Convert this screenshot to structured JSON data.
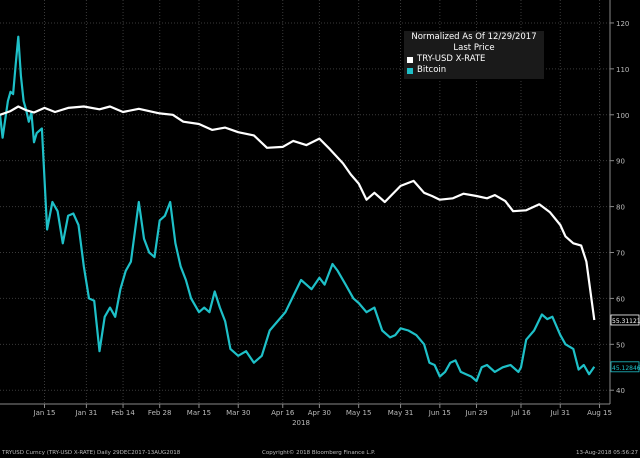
{
  "legend": {
    "title": "Normalized As Of 12/29/2017",
    "subtitle": "Last Price"
  },
  "footer": {
    "left": "TRYUSD Curncy  (TRY-USD X-RATE)  Daily  29DEC2017-13AUG2018",
    "center": "Copyright© 2018 Bloomberg Finance L.P.",
    "right": "13-Aug-2018  05:56:27"
  },
  "chart_data": {
    "type": "line",
    "title": "",
    "xlabel": "2018",
    "ylabel": "",
    "x_ticks": [
      "Jan 15",
      "Jan 31",
      "Feb 14",
      "Feb 28",
      "Mar 15",
      "Mar 30",
      "Apr 16",
      "Apr 30",
      "May 15",
      "May 31",
      "Jun 15",
      "Jun 29",
      "Jul 16",
      "Jul 31",
      "Aug 15"
    ],
    "x_tick_dates": [
      "2018-01-15",
      "2018-01-31",
      "2018-02-14",
      "2018-02-28",
      "2018-03-15",
      "2018-03-30",
      "2018-04-16",
      "2018-04-30",
      "2018-05-15",
      "2018-05-31",
      "2018-06-15",
      "2018-06-29",
      "2018-07-16",
      "2018-07-31",
      "2018-08-15"
    ],
    "xlim": [
      "2017-12-29",
      "2018-08-19"
    ],
    "y_ticks": [
      40,
      50,
      60,
      70,
      80,
      90,
      100,
      110,
      120
    ],
    "ylim": [
      37,
      125
    ],
    "y_axis_side": "right",
    "grid": true,
    "legend_position": "top-right",
    "series": [
      {
        "name": "TRY-USD X-RATE",
        "color": "#ffffff",
        "last_label": "55.31121",
        "points": [
          [
            "2017-12-29",
            100.0
          ],
          [
            "2018-01-02",
            100.8
          ],
          [
            "2018-01-05",
            101.8
          ],
          [
            "2018-01-08",
            101.0
          ],
          [
            "2018-01-11",
            100.5
          ],
          [
            "2018-01-15",
            101.5
          ],
          [
            "2018-01-19",
            100.6
          ],
          [
            "2018-01-24",
            101.5
          ],
          [
            "2018-01-30",
            101.8
          ],
          [
            "2018-02-05",
            101.2
          ],
          [
            "2018-02-09",
            101.8
          ],
          [
            "2018-02-14",
            100.6
          ],
          [
            "2018-02-20",
            101.3
          ],
          [
            "2018-02-28",
            100.3
          ],
          [
            "2018-03-05",
            100.0
          ],
          [
            "2018-03-09",
            98.5
          ],
          [
            "2018-03-15",
            98.0
          ],
          [
            "2018-03-20",
            96.7
          ],
          [
            "2018-03-25",
            97.2
          ],
          [
            "2018-03-30",
            96.2
          ],
          [
            "2018-04-05",
            95.5
          ],
          [
            "2018-04-10",
            92.8
          ],
          [
            "2018-04-16",
            93.0
          ],
          [
            "2018-04-20",
            94.3
          ],
          [
            "2018-04-25",
            93.4
          ],
          [
            "2018-04-30",
            94.8
          ],
          [
            "2018-05-04",
            92.5
          ],
          [
            "2018-05-09",
            89.4
          ],
          [
            "2018-05-12",
            87.0
          ],
          [
            "2018-05-15",
            85.0
          ],
          [
            "2018-05-18",
            81.5
          ],
          [
            "2018-05-21",
            83.0
          ],
          [
            "2018-05-25",
            81.0
          ],
          [
            "2018-05-31",
            84.5
          ],
          [
            "2018-06-05",
            85.6
          ],
          [
            "2018-06-09",
            83.0
          ],
          [
            "2018-06-12",
            82.3
          ],
          [
            "2018-06-15",
            81.5
          ],
          [
            "2018-06-20",
            81.8
          ],
          [
            "2018-06-24",
            82.8
          ],
          [
            "2018-06-29",
            82.3
          ],
          [
            "2018-07-03",
            81.8
          ],
          [
            "2018-07-06",
            82.5
          ],
          [
            "2018-07-10",
            81.2
          ],
          [
            "2018-07-13",
            79.0
          ],
          [
            "2018-07-18",
            79.2
          ],
          [
            "2018-07-23",
            80.5
          ],
          [
            "2018-07-27",
            78.8
          ],
          [
            "2018-07-31",
            76.0
          ],
          [
            "2018-08-02",
            73.5
          ],
          [
            "2018-08-05",
            72.0
          ],
          [
            "2018-08-08",
            71.5
          ],
          [
            "2018-08-10",
            68.0
          ],
          [
            "2018-08-13",
            55.3
          ]
        ]
      },
      {
        "name": "Bitcoin",
        "color": "#1ec0c8",
        "last_label": "45.12846",
        "points": [
          [
            "2017-12-29",
            100.0
          ],
          [
            "2017-12-30",
            95.0
          ],
          [
            "2018-01-01",
            103.0
          ],
          [
            "2018-01-02",
            105.0
          ],
          [
            "2018-01-03",
            104.5
          ],
          [
            "2018-01-04",
            111.0
          ],
          [
            "2018-01-05",
            117.0
          ],
          [
            "2018-01-06",
            108.5
          ],
          [
            "2018-01-07",
            103.0
          ],
          [
            "2018-01-08",
            101.0
          ],
          [
            "2018-01-09",
            98.5
          ],
          [
            "2018-01-10",
            100.5
          ],
          [
            "2018-01-11",
            94.0
          ],
          [
            "2018-01-12",
            96.0
          ],
          [
            "2018-01-14",
            97.0
          ],
          [
            "2018-01-16",
            75.0
          ],
          [
            "2018-01-18",
            81.0
          ],
          [
            "2018-01-20",
            79.0
          ],
          [
            "2018-01-22",
            72.0
          ],
          [
            "2018-01-24",
            78.0
          ],
          [
            "2018-01-26",
            78.5
          ],
          [
            "2018-01-28",
            76.0
          ],
          [
            "2018-01-30",
            67.0
          ],
          [
            "2018-02-01",
            60.0
          ],
          [
            "2018-02-03",
            59.5
          ],
          [
            "2018-02-05",
            48.5
          ],
          [
            "2018-02-07",
            56.0
          ],
          [
            "2018-02-09",
            58.0
          ],
          [
            "2018-02-11",
            56.0
          ],
          [
            "2018-02-13",
            62.0
          ],
          [
            "2018-02-15",
            66.0
          ],
          [
            "2018-02-17",
            68.0
          ],
          [
            "2018-02-20",
            81.0
          ],
          [
            "2018-02-22",
            73.0
          ],
          [
            "2018-02-24",
            70.0
          ],
          [
            "2018-02-26",
            69.0
          ],
          [
            "2018-02-28",
            77.0
          ],
          [
            "2018-03-02",
            78.0
          ],
          [
            "2018-03-04",
            81.0
          ],
          [
            "2018-03-06",
            72.0
          ],
          [
            "2018-03-08",
            67.0
          ],
          [
            "2018-03-10",
            64.0
          ],
          [
            "2018-03-12",
            60.0
          ],
          [
            "2018-03-15",
            57.0
          ],
          [
            "2018-03-17",
            58.0
          ],
          [
            "2018-03-19",
            57.0
          ],
          [
            "2018-03-21",
            61.5
          ],
          [
            "2018-03-23",
            58.0
          ],
          [
            "2018-03-25",
            55.0
          ],
          [
            "2018-03-27",
            49.0
          ],
          [
            "2018-03-30",
            47.5
          ],
          [
            "2018-04-02",
            48.5
          ],
          [
            "2018-04-05",
            46.0
          ],
          [
            "2018-04-08",
            47.5
          ],
          [
            "2018-04-11",
            53.0
          ],
          [
            "2018-04-14",
            55.0
          ],
          [
            "2018-04-17",
            57.0
          ],
          [
            "2018-04-20",
            60.5
          ],
          [
            "2018-04-23",
            64.0
          ],
          [
            "2018-04-25",
            63.0
          ],
          [
            "2018-04-27",
            62.0
          ],
          [
            "2018-04-30",
            64.5
          ],
          [
            "2018-05-02",
            63.0
          ],
          [
            "2018-05-05",
            67.5
          ],
          [
            "2018-05-07",
            66.0
          ],
          [
            "2018-05-10",
            63.0
          ],
          [
            "2018-05-13",
            60.0
          ],
          [
            "2018-05-15",
            59.0
          ],
          [
            "2018-05-18",
            57.0
          ],
          [
            "2018-05-21",
            58.0
          ],
          [
            "2018-05-24",
            53.0
          ],
          [
            "2018-05-27",
            51.5
          ],
          [
            "2018-05-29",
            52.0
          ],
          [
            "2018-05-31",
            53.5
          ],
          [
            "2018-06-03",
            53.0
          ],
          [
            "2018-06-06",
            52.0
          ],
          [
            "2018-06-09",
            50.0
          ],
          [
            "2018-06-11",
            46.0
          ],
          [
            "2018-06-13",
            45.5
          ],
          [
            "2018-06-15",
            43.0
          ],
          [
            "2018-06-17",
            44.0
          ],
          [
            "2018-06-19",
            46.0
          ],
          [
            "2018-06-21",
            46.5
          ],
          [
            "2018-06-23",
            44.0
          ],
          [
            "2018-06-25",
            43.5
          ],
          [
            "2018-06-27",
            43.0
          ],
          [
            "2018-06-29",
            42.0
          ],
          [
            "2018-07-01",
            45.0
          ],
          [
            "2018-07-03",
            45.5
          ],
          [
            "2018-07-06",
            44.0
          ],
          [
            "2018-07-09",
            45.0
          ],
          [
            "2018-07-12",
            45.5
          ],
          [
            "2018-07-15",
            44.0
          ],
          [
            "2018-07-16",
            45.0
          ],
          [
            "2018-07-18",
            51.0
          ],
          [
            "2018-07-21",
            53.0
          ],
          [
            "2018-07-24",
            56.5
          ],
          [
            "2018-07-26",
            55.5
          ],
          [
            "2018-07-28",
            56.0
          ],
          [
            "2018-07-31",
            52.0
          ],
          [
            "2018-08-02",
            50.0
          ],
          [
            "2018-08-05",
            49.0
          ],
          [
            "2018-08-07",
            44.5
          ],
          [
            "2018-08-09",
            45.5
          ],
          [
            "2018-08-11",
            43.5
          ],
          [
            "2018-08-13",
            45.1
          ]
        ]
      }
    ]
  }
}
